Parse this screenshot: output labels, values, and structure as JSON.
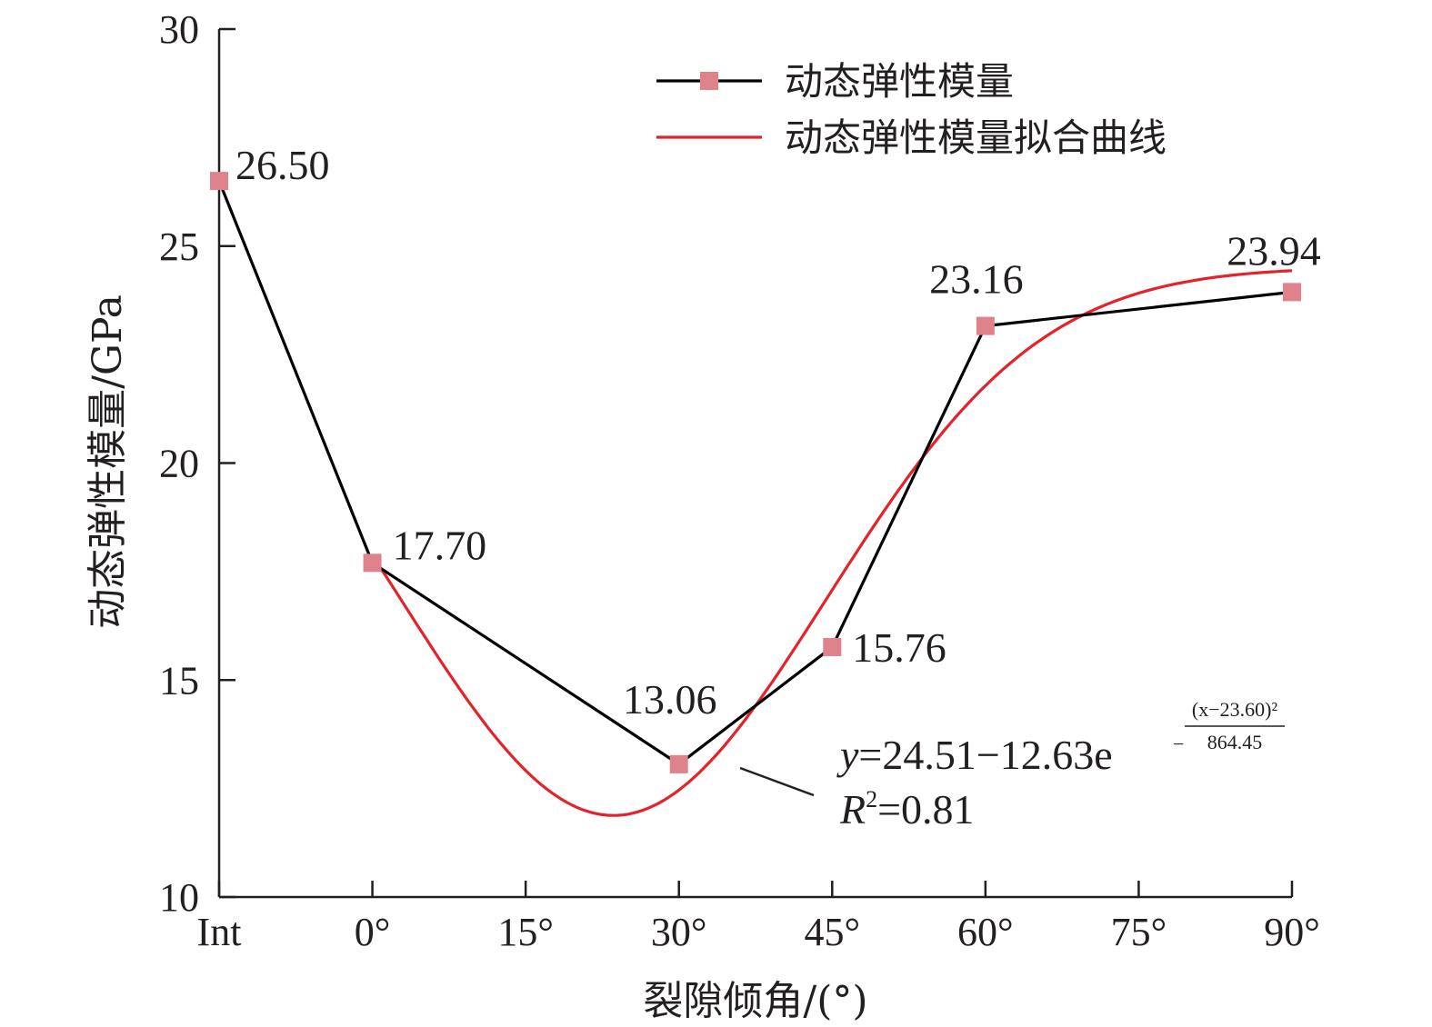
{
  "chart_data": {
    "type": "line",
    "categories": [
      "Int",
      "0°",
      "15°",
      "30°",
      "45°",
      "60°",
      "75°",
      "90°"
    ],
    "xlabel": "裂隙倾角/(°)",
    "ylabel": "动态弹性模量/GPa",
    "ylim": [
      10,
      30
    ],
    "yticks": [
      "10",
      "15",
      "20",
      "25",
      "30"
    ],
    "grid": false,
    "legend_position": "top-right",
    "colors": {
      "measured_line": "#000000",
      "marker": "#e0828c",
      "fit_line": "#e3232b",
      "axis": "#231f20"
    },
    "series": [
      {
        "name": "动态弹性模量",
        "points": [
          {
            "x": "Int",
            "y": 26.5,
            "label": "26.50"
          },
          {
            "x": "0°",
            "y": 17.7,
            "label": "17.70"
          },
          {
            "x": "30°",
            "y": 13.06,
            "label": "13.06"
          },
          {
            "x": "45°",
            "y": 15.76,
            "label": "15.76"
          },
          {
            "x": "60°",
            "y": 23.16,
            "label": "23.16"
          },
          {
            "x": "90°",
            "y": 23.94,
            "label": "23.94"
          }
        ]
      },
      {
        "name": "动态弹性模量拟合曲线",
        "fit": {
          "a": 24.51,
          "b": 12.63,
          "c": 23.6,
          "d": 864.45,
          "x_from": 0,
          "x_to": 90
        }
      }
    ],
    "equation": {
      "y": "y",
      "main": "=24.51−12.63e",
      "exp_sign": "−",
      "exp_num": "(x−23.60)²",
      "exp_den": "864.45",
      "r2_R": "R",
      "r2_exp": "2",
      "r2_val": "=0.81"
    }
  }
}
